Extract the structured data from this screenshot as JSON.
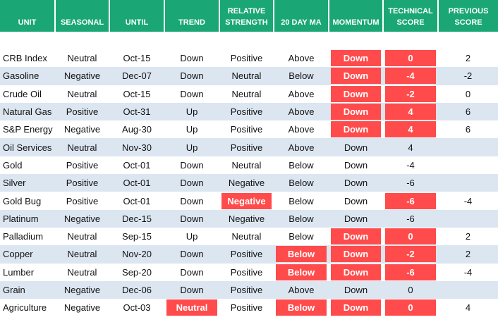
{
  "table": {
    "columns": [
      "UNIT",
      "SEASONAL",
      "UNTIL",
      "TREND",
      "RELATIVE STRENGTH",
      "20 DAY MA",
      "MOMENTUM",
      "TECHNICAL SCORE",
      "PREVIOUS SCORE"
    ],
    "header_color": "#1aa775",
    "stripe_color": "#dce6f1",
    "highlight_color": "#ff4b4b",
    "rows": [
      {
        "cells": [
          "CRB Index",
          "Neutral",
          "Oct-15",
          "Down",
          "Positive",
          "Above",
          "Down",
          0,
          2
        ],
        "highlight": [
          6,
          7
        ]
      },
      {
        "cells": [
          "Gasoline",
          "Negative",
          "Dec-07",
          "Down",
          "Neutral",
          "Below",
          "Down",
          -4,
          -2
        ],
        "highlight": [
          6,
          7
        ]
      },
      {
        "cells": [
          "Crude Oil",
          "Neutral",
          "Oct-15",
          "Down",
          "Neutral",
          "Above",
          "Down",
          -2,
          0
        ],
        "highlight": [
          6,
          7
        ]
      },
      {
        "cells": [
          "Natural Gas",
          "Positive",
          "Oct-31",
          "Up",
          "Positive",
          "Above",
          "Down",
          4,
          6
        ],
        "highlight": [
          6,
          7
        ]
      },
      {
        "cells": [
          "S&P Energy",
          "Negative",
          "Aug-30",
          "Up",
          "Positive",
          "Above",
          "Down",
          4,
          6
        ],
        "highlight": [
          6,
          7
        ]
      },
      {
        "cells": [
          "Oil Services",
          "Neutral",
          "Nov-30",
          "Up",
          "Positive",
          "Above",
          "Down",
          4,
          null
        ],
        "highlight": []
      },
      {
        "cells": [
          "Gold",
          "Positive",
          "Oct-01",
          "Down",
          "Neutral",
          "Below",
          "Down",
          -4,
          null
        ],
        "highlight": []
      },
      {
        "cells": [
          "Silver",
          "Positive",
          "Oct-01",
          "Down",
          "Negative",
          "Below",
          "Down",
          -6,
          null
        ],
        "highlight": []
      },
      {
        "cells": [
          "Gold Bug",
          "Positive",
          "Oct-01",
          "Down",
          "Negative",
          "Below",
          "Down",
          -6,
          -4
        ],
        "highlight": [
          4,
          7
        ]
      },
      {
        "cells": [
          "Platinum",
          "Negative",
          "Dec-15",
          "Down",
          "Negative",
          "Below",
          "Down",
          -6,
          null
        ],
        "highlight": []
      },
      {
        "cells": [
          "Palladium",
          "Neutral",
          "Sep-15",
          "Up",
          "Neutral",
          "Below",
          "Down",
          0,
          2
        ],
        "highlight": [
          6,
          7
        ]
      },
      {
        "cells": [
          "Copper",
          "Neutral",
          "Nov-20",
          "Down",
          "Positive",
          "Below",
          "Down",
          -2,
          2
        ],
        "highlight": [
          5,
          6,
          7
        ]
      },
      {
        "cells": [
          "Lumber",
          "Neutral",
          "Sep-20",
          "Down",
          "Positive",
          "Below",
          "Down",
          -6,
          -4
        ],
        "highlight": [
          5,
          6,
          7
        ]
      },
      {
        "cells": [
          "Grain",
          "Negative",
          "Dec-06",
          "Down",
          "Positive",
          "Above",
          "Down",
          0,
          null
        ],
        "highlight": []
      },
      {
        "cells": [
          "Agriculture",
          "Negative",
          "Oct-03",
          "Neutral",
          "Positive",
          "Below",
          "Down",
          0,
          4
        ],
        "highlight": [
          3,
          5,
          6,
          7
        ]
      }
    ]
  }
}
